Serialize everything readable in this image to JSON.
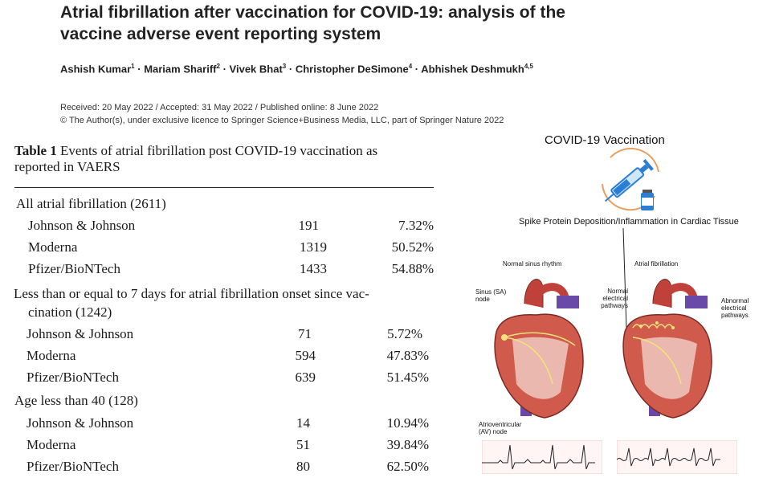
{
  "paper": {
    "title": "Atrial fibrillation after vaccination for COVID-19: analysis of the vaccine adverse event reporting system",
    "authors": [
      {
        "name": "Ashish Kumar",
        "sup": "1"
      },
      {
        "name": "Mariam Shariff",
        "sup": "2"
      },
      {
        "name": "Vivek Bhat",
        "sup": "3"
      },
      {
        "name": "Christopher DeSimone",
        "sup": "4"
      },
      {
        "name": "Abhishek Deshmukh",
        "sup": "4,5"
      }
    ],
    "author_separator": "·",
    "dates": "Received: 20 May 2022 / Accepted: 31 May 2022 / Published online: 8 June 2022",
    "copyright": "© The Author(s), under exclusive licence to Springer Science+Business Media, LLC, part of Springer Nature 2022"
  },
  "table": {
    "label": "Table 1",
    "caption_line1": "Events of atrial fibrillation post COVID-19 vaccination as",
    "caption_line2": "reported in VAERS",
    "groups": [
      {
        "heading": "All atrial fibrillation (2611)",
        "rows": [
          {
            "vaccine": "Johnson & Johnson",
            "count": "191",
            "percent": "7.32%"
          },
          {
            "vaccine": "Moderna",
            "count": "1319",
            "percent": "50.52%"
          },
          {
            "vaccine": "Pfizer/BioNTech",
            "count": "1433",
            "percent": "54.88%"
          }
        ]
      },
      {
        "heading_line1": "Less than or equal to 7 days for atrial fibrillation onset since vac-",
        "heading_line2": "cination (1242)",
        "rows": [
          {
            "vaccine": "Johnson & Johnson",
            "count": "71",
            "percent": "5.72%"
          },
          {
            "vaccine": "Moderna",
            "count": "594",
            "percent": "47.83%"
          },
          {
            "vaccine": "Pfizer/BioNTech",
            "count": "639",
            "percent": "51.45%"
          }
        ]
      },
      {
        "heading": "Age less than 40 (128)",
        "rows": [
          {
            "vaccine": "Johnson & Johnson",
            "count": "14",
            "percent": "10.94%"
          },
          {
            "vaccine": "Moderna",
            "count": "51",
            "percent": "39.84%"
          },
          {
            "vaccine": "Pfizer/BioNTech",
            "count": "80",
            "percent": "62.50%"
          }
        ]
      }
    ]
  },
  "figure": {
    "title": "COVID-19 Vaccination",
    "subtitle": "Spike Protein Deposition/Inflammation in Cardiac Tissue",
    "left_heart": {
      "label": "Normal sinus rhythm",
      "sa_node": "Sinus (SA) node",
      "pathways": "Normal electrical pathways",
      "av_node": "Atrioventricular (AV) node"
    },
    "right_heart": {
      "label": "Atrial fibrillation",
      "pathways": "Abnormal electrical pathways"
    },
    "icons": [
      "syringe-icon",
      "vaccine-vial-icon"
    ],
    "colors": {
      "syringe": "#2a7fd4",
      "circle": "#e8a060",
      "heart": "#c0403a",
      "vessel": "#6a4aa8",
      "ecg_grid": "#f0a0a0"
    }
  }
}
